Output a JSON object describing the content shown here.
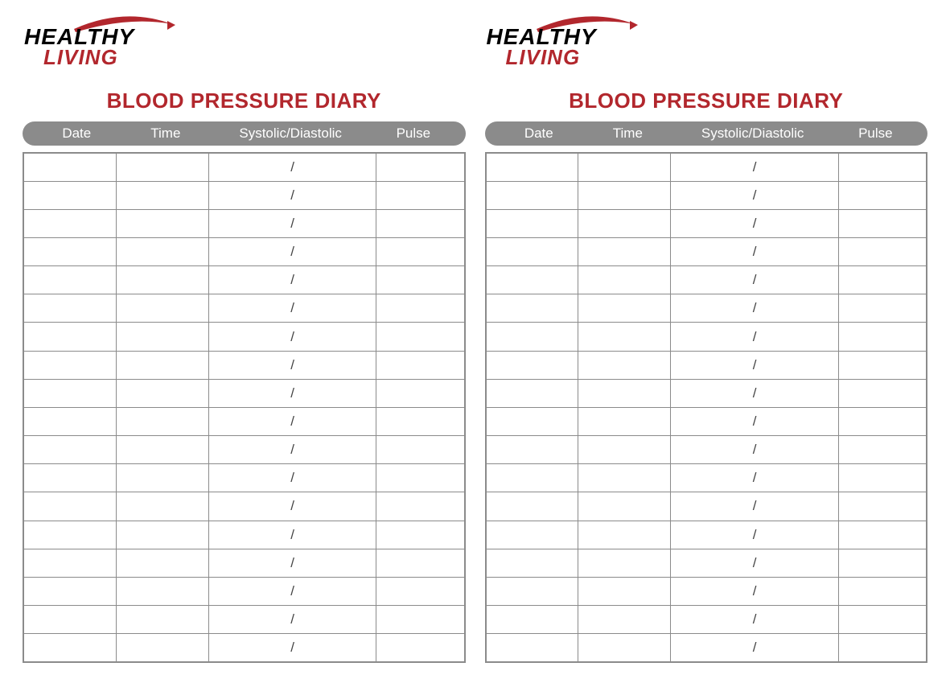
{
  "brand": {
    "line1": "HEALTHY",
    "line2": "LIVING",
    "line1_color": "#000000",
    "line2_color": "#b2272d",
    "swoosh_color": "#b2272d"
  },
  "title": "BLOOD PRESSURE DIARY",
  "title_color": "#b2272d",
  "header_bg": "#8b8b8b",
  "header_text_color": "#ffffff",
  "border_color": "#8b8b8b",
  "columns": {
    "date": {
      "label": "Date",
      "width_pct": 21
    },
    "time": {
      "label": "Time",
      "width_pct": 21
    },
    "sd": {
      "label": "Systolic/Diastolic",
      "width_pct": 38
    },
    "pulse": {
      "label": "Pulse",
      "width_pct": 20
    }
  },
  "row_sd_placeholder": "/",
  "num_rows": 18,
  "num_panels": 2,
  "background_color": "#ffffff"
}
